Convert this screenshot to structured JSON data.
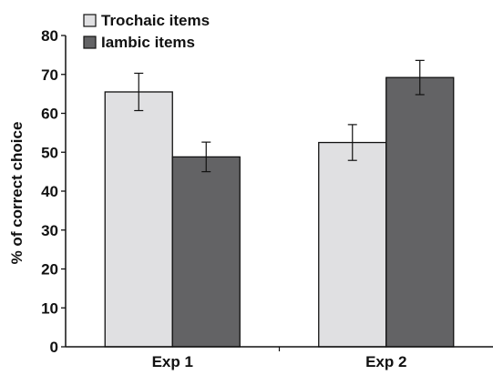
{
  "chart_data": {
    "type": "bar",
    "categories": [
      "Exp 1",
      "Exp 2"
    ],
    "series": [
      {
        "name": "Trochaic items",
        "values": [
          65.5,
          52.5
        ],
        "error": [
          4.8,
          4.6
        ],
        "color": "#e0e0e2"
      },
      {
        "name": "Iambic items",
        "values": [
          48.8,
          69.2
        ],
        "error": [
          3.8,
          4.4
        ],
        "color": "#636365"
      }
    ],
    "title": "",
    "xlabel": "",
    "ylabel": "% of correct choice",
    "ylim": [
      0,
      80
    ],
    "yticks": [
      "0",
      "10",
      "20",
      "30",
      "40",
      "50",
      "60",
      "70",
      "80"
    ],
    "legend_position": "top-left",
    "grid": false
  }
}
